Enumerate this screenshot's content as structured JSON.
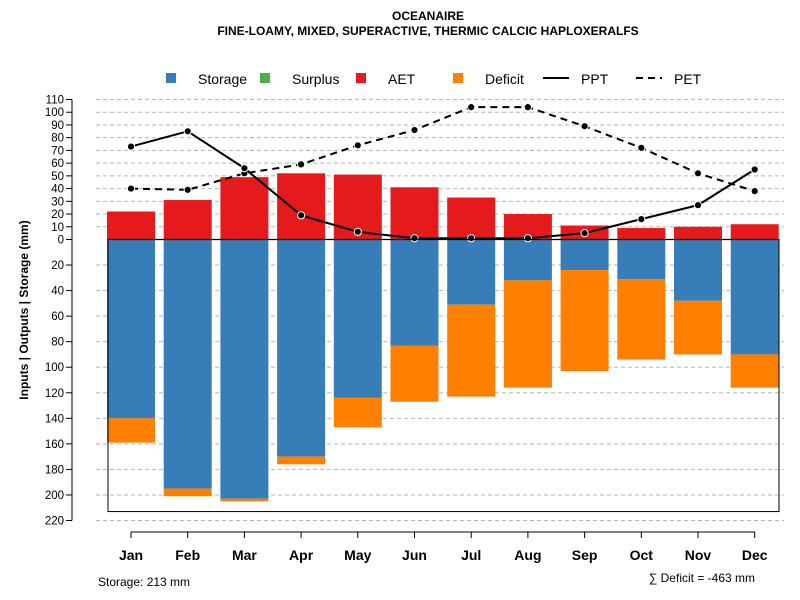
{
  "chart_data": {
    "type": "bar",
    "title": "OCEANAIRE",
    "subtitle": "FINE-LOAMY, MIXED, SUPERACTIVE, THERMIC CALCIC HAPLOXERALFS",
    "ylabel": "Inputs | Outputs | Storage     (mm)",
    "categories": [
      "Jan",
      "Feb",
      "Mar",
      "Apr",
      "May",
      "Jun",
      "Jul",
      "Aug",
      "Sep",
      "Oct",
      "Nov",
      "Dec"
    ],
    "y_upper_ticks": [
      0,
      10,
      20,
      30,
      40,
      50,
      60,
      70,
      80,
      90,
      100,
      110
    ],
    "y_lower_ticks": [
      20,
      40,
      60,
      80,
      100,
      120,
      140,
      160,
      180,
      200,
      220
    ],
    "ylim_upper": [
      0,
      110
    ],
    "ylim_lower": [
      0,
      220
    ],
    "legend": [
      "Storage",
      "Surplus",
      "AET",
      "Deficit",
      "PPT",
      "PET"
    ],
    "colors": {
      "Storage": "#377eb8",
      "Surplus": "#4daf4a",
      "AET": "#e41a1c",
      "Deficit": "#ff7f00",
      "PPT": "#000000",
      "PET": "#000000"
    },
    "series": [
      {
        "name": "AET",
        "kind": "bar-up",
        "values": [
          22,
          31,
          49,
          52,
          51,
          41,
          33,
          20,
          11,
          9,
          10,
          12
        ]
      },
      {
        "name": "Surplus",
        "kind": "bar-up",
        "values": [
          0,
          0,
          0,
          0,
          0,
          0,
          0,
          0,
          0,
          0,
          0,
          0
        ]
      },
      {
        "name": "Storage",
        "kind": "bar-down",
        "values": [
          140,
          195,
          203,
          170,
          124,
          83,
          51,
          32,
          24,
          31,
          48,
          90
        ]
      },
      {
        "name": "Deficit",
        "kind": "bar-down-stacked",
        "values": [
          19,
          6,
          2,
          6,
          23,
          44,
          72,
          84,
          79,
          63,
          42,
          26
        ]
      },
      {
        "name": "PPT",
        "kind": "line-solid",
        "values": [
          73,
          85,
          56,
          19,
          6,
          1,
          1,
          1,
          5,
          16,
          27,
          55
        ]
      },
      {
        "name": "PET",
        "kind": "line-dashed",
        "values": [
          40,
          39,
          52,
          59,
          74,
          86,
          104,
          104,
          89,
          72,
          52,
          38
        ]
      }
    ],
    "storage_capacity": 213
  },
  "footer": {
    "storage": "Storage: 213 mm",
    "deficit": "∑ Deficit = -463 mm"
  }
}
